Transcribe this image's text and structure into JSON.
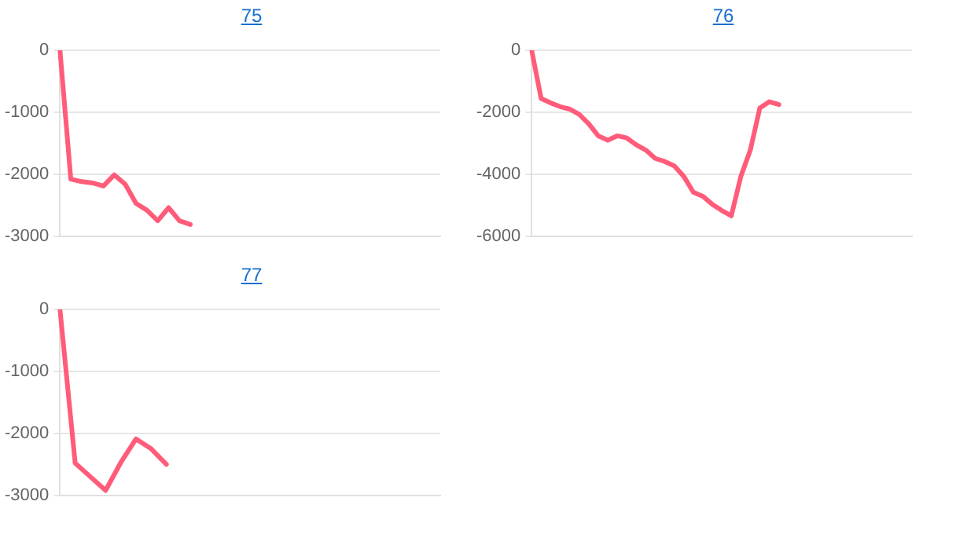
{
  "chart_data": [
    {
      "type": "line",
      "title": "75",
      "categories": [
        null,
        null,
        null,
        null,
        null,
        null,
        null,
        null,
        null,
        null,
        null,
        null,
        null,
        null,
        null,
        null,
        null,
        null,
        null,
        null,
        null,
        null,
        null,
        null,
        null,
        null,
        null,
        null,
        null,
        null,
        null,
        null,
        null,
        null,
        null,
        null
      ],
      "values": [
        0,
        -2080,
        -2120,
        -2140,
        -2190,
        -2010,
        -2160,
        -2470,
        -2580,
        -2750,
        -2540,
        -2750,
        -2810,
        null,
        null,
        null,
        null,
        null,
        null,
        null,
        null,
        null,
        null,
        null,
        null,
        null,
        null,
        null,
        null,
        null,
        null,
        null,
        null,
        null,
        null,
        null
      ],
      "color": "#ff5c7a",
      "ylim": [
        -3000,
        0
      ],
      "yticks": [
        0,
        -1000,
        -2000,
        -3000
      ],
      "grid": "y",
      "tick_labels": "y",
      "marker": "none"
    },
    {
      "type": "line",
      "title": "76",
      "categories": [
        null,
        null,
        null,
        null,
        null,
        null,
        null,
        null,
        null,
        null,
        null,
        null,
        null,
        null,
        null,
        null,
        null,
        null,
        null,
        null,
        null,
        null,
        null,
        null,
        null,
        null,
        null,
        null,
        null,
        null,
        null,
        null,
        null,
        null,
        null,
        null,
        null,
        null,
        null,
        null,
        null
      ],
      "values": [
        0,
        -1560,
        -1700,
        -1820,
        -1900,
        -2070,
        -2370,
        -2760,
        -2900,
        -2760,
        -2830,
        -3050,
        -3220,
        -3490,
        -3590,
        -3730,
        -4070,
        -4580,
        -4710,
        -4970,
        -5170,
        -5340,
        -4070,
        -3220,
        -1860,
        -1660,
        -1750,
        null,
        null,
        null,
        null,
        null,
        null,
        null,
        null,
        null,
        null,
        null,
        null,
        null,
        null
      ],
      "color": "#ff5c7a",
      "ylim": [
        -6000,
        0
      ],
      "yticks": [
        0,
        -2000,
        -4000,
        -6000
      ],
      "grid": "y",
      "tick_labels": "y",
      "marker": "none"
    },
    {
      "type": "line",
      "title": "77",
      "categories": [
        null,
        null,
        null,
        null,
        null,
        null,
        null,
        null,
        null,
        null,
        null,
        null,
        null,
        null,
        null,
        null,
        null,
        null,
        null,
        null,
        null,
        null,
        null,
        null,
        null,
        null
      ],
      "values": [
        0,
        -2480,
        -2700,
        -2920,
        -2470,
        -2090,
        -2250,
        -2500,
        null,
        null,
        null,
        null,
        null,
        null,
        null,
        null,
        null,
        null,
        null,
        null,
        null,
        null,
        null,
        null,
        null,
        null
      ],
      "color": "#ff5c7a",
      "ylim": [
        -3000,
        0
      ],
      "yticks": [
        0,
        -1000,
        -2000,
        -3000
      ],
      "grid": "y",
      "tick_labels": "y",
      "marker": "none"
    }
  ]
}
